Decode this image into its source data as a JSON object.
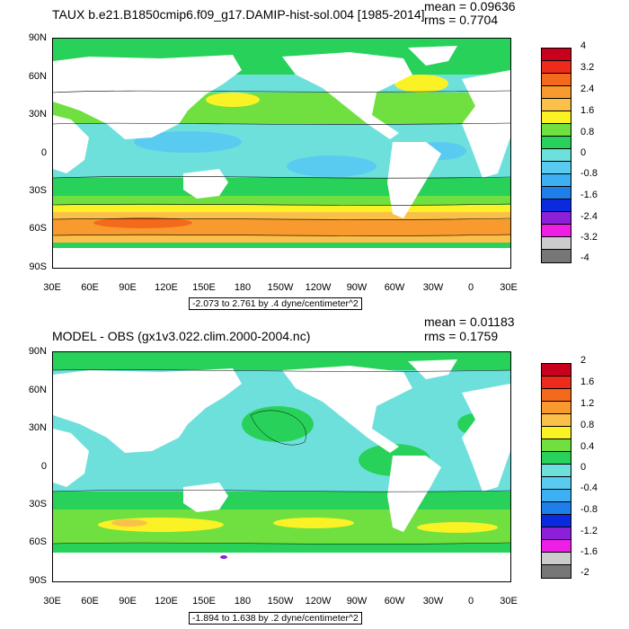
{
  "panels": [
    {
      "title": "TAUX b.e21.B1850cmip6.f09_g17.DAMIP-hist-sol.004 [1985-2014]",
      "mean": "mean = 0.09636",
      "rms": "rms = 0.7704",
      "range": "-2.073 to 2.761 by .4 dyne/centimeter^2",
      "colorbar_labels": [
        "4",
        "3.2",
        "2.4",
        "1.6",
        "0.8",
        "0",
        "-0.8",
        "-1.6",
        "-2.4",
        "-3.2",
        "-4"
      ]
    },
    {
      "title": "MODEL - OBS (gx1v3.022.clim.2000-2004.nc)",
      "mean": "mean = 0.01183",
      "rms": "rms = 0.1759",
      "range": "-1.894 to 1.638 by .2 dyne/centimeter^2",
      "colorbar_labels": [
        "2",
        "1.6",
        "1.2",
        "0.8",
        "0.4",
        "0",
        "-0.4",
        "-0.8",
        "-1.2",
        "-1.6",
        "-2"
      ]
    }
  ],
  "axes": {
    "lat_labels": [
      "90N",
      "60N",
      "30N",
      "0",
      "30S",
      "60S",
      "90S"
    ],
    "lon_labels": [
      "30E",
      "60E",
      "90E",
      "120E",
      "150E",
      "180",
      "150W",
      "120W",
      "90W",
      "60W",
      "30W",
      "0",
      "30E"
    ]
  },
  "colorbar_colors": [
    "#c8001e",
    "#ee2a1a",
    "#f46a1c",
    "#f89a2e",
    "#fbc04a",
    "#fbf226",
    "#70e040",
    "#28d25a",
    "#6ee0dc",
    "#5acbf0",
    "#3cb0f2",
    "#1e7eea",
    "#0a2ae0",
    "#8c20d8",
    "#ee1ee6",
    "#cccccc",
    "#777777"
  ]
}
